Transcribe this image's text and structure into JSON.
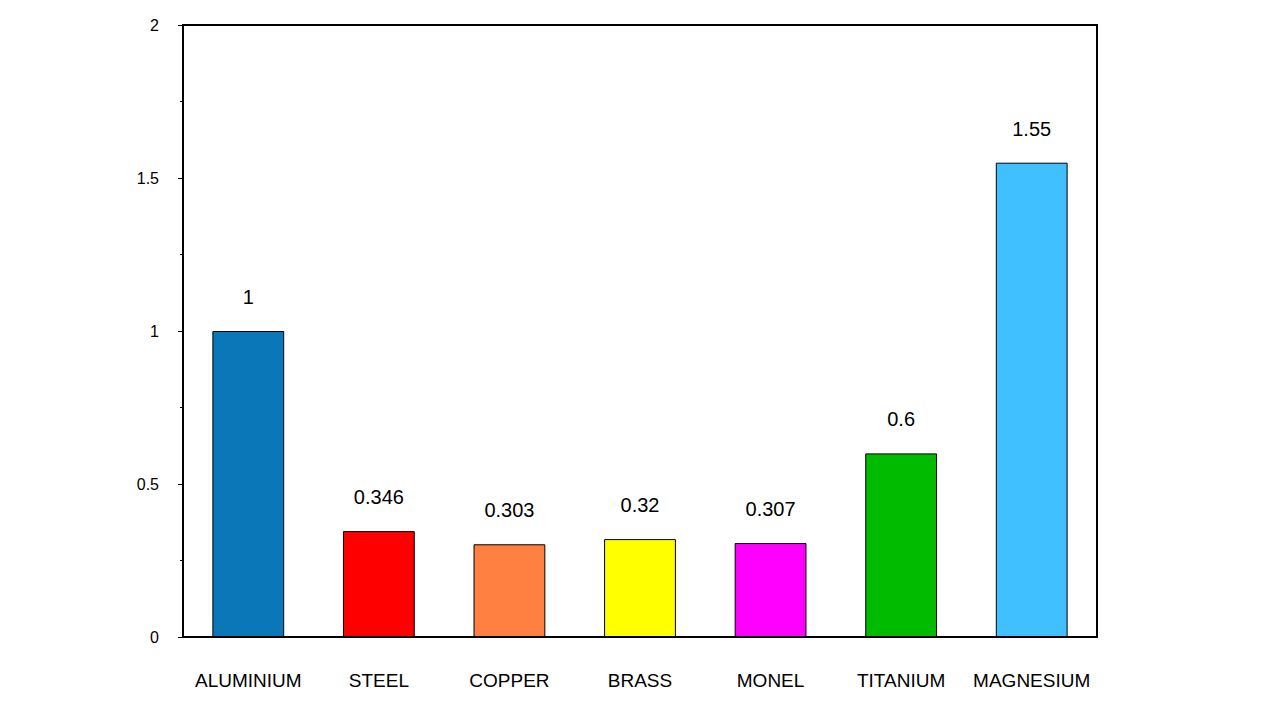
{
  "chart_data": {
    "type": "bar",
    "categories": [
      "ALUMINIUM",
      "STEEL",
      "COPPER",
      "BRASS",
      "MONEL",
      "TITANIUM",
      "MAGNESIUM"
    ],
    "values": [
      1,
      0.346,
      0.303,
      0.32,
      0.307,
      0.6,
      1.55
    ],
    "colors": [
      "#0a78b8",
      "#ff0000",
      "#ff8040",
      "#ffff00",
      "#ff00ff",
      "#00bb00",
      "#40c0ff"
    ],
    "ylim": [
      0,
      2
    ],
    "yticks": [
      0,
      0.5,
      1,
      1.5,
      2
    ],
    "data_labels": true,
    "grid": false
  }
}
